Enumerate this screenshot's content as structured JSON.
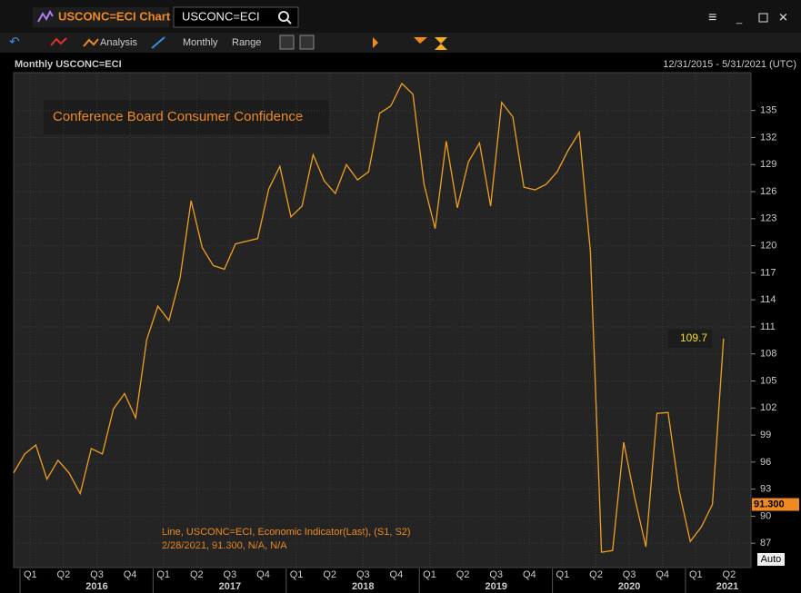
{
  "ui": {
    "window_title": "USCONC=ECI Chart",
    "search": "USCONC=ECI",
    "toolbar": {
      "analysis": "Analysis",
      "interval": "Monthly",
      "range": "Range"
    },
    "chart_header": "Monthly USCONC=ECI",
    "date_range": "12/31/2015 - 5/31/2021 (UTC)",
    "legend_line": "Line, USCONC=ECI, Economic Indicator(Last), (S1, S2)",
    "legend_values": "2/28/2021, 91.300, N/A, N/A",
    "auto": "Auto"
  },
  "chart_data": {
    "type": "line",
    "title": "Conference Board Consumer Confidence",
    "color": "#f0a020",
    "values": [
      94.8,
      96.9,
      97.9,
      94.1,
      96.2,
      94.8,
      92.5,
      97.5,
      96.9,
      101.9,
      103.6,
      100.9,
      109.6,
      113.3,
      111.7,
      116.4,
      125.0,
      119.8,
      117.8,
      117.4,
      120.2,
      120.5,
      120.8,
      126.3,
      128.8,
      123.2,
      124.4,
      130.1,
      127.2,
      125.8,
      129.0,
      127.3,
      128.2,
      134.7,
      135.5,
      138.0,
      136.8,
      126.8,
      121.9,
      131.6,
      124.2,
      129.3,
      131.4,
      124.4,
      135.9,
      134.3,
      126.5,
      126.2,
      126.8,
      128.2,
      130.6,
      132.6,
      119.3,
      86.0,
      86.2,
      98.2,
      92.0,
      86.6,
      101.4,
      101.5,
      92.8,
      87.2,
      88.8,
      91.3,
      109.7
    ],
    "value_labels": [
      null,
      null,
      null,
      null,
      null,
      null,
      null,
      null,
      null,
      null,
      null,
      null,
      null,
      null,
      null,
      null,
      null,
      null,
      null,
      null,
      null,
      null,
      null,
      null,
      null,
      null,
      null,
      null,
      null,
      null,
      null,
      null,
      null,
      null,
      null,
      null,
      null,
      null,
      null,
      null,
      null,
      null,
      null,
      null,
      null,
      null,
      null,
      null,
      null,
      null,
      null,
      null,
      null,
      null,
      null,
      null,
      null,
      null,
      null,
      null,
      null,
      null,
      null,
      "91.300",
      null
    ],
    "quarters": [
      "Q1",
      "Q2",
      "Q3",
      "Q4",
      "Q1",
      "Q2",
      "Q3",
      "Q4",
      "Q1",
      "Q2",
      "Q3",
      "Q4",
      "Q1",
      "Q2",
      "Q3",
      "Q4",
      "Q1",
      "Q2",
      "Q3",
      "Q4",
      "Q1",
      "Q2"
    ],
    "years": [
      "2016",
      "2017",
      "2018",
      "2019",
      "2020",
      "2021"
    ],
    "ylim": [
      84.3,
      139.2
    ],
    "yticks": [
      87,
      90,
      93,
      96,
      99,
      102,
      105,
      108,
      111,
      114,
      117,
      120,
      123,
      126,
      129,
      132,
      135
    ],
    "grid": true
  }
}
